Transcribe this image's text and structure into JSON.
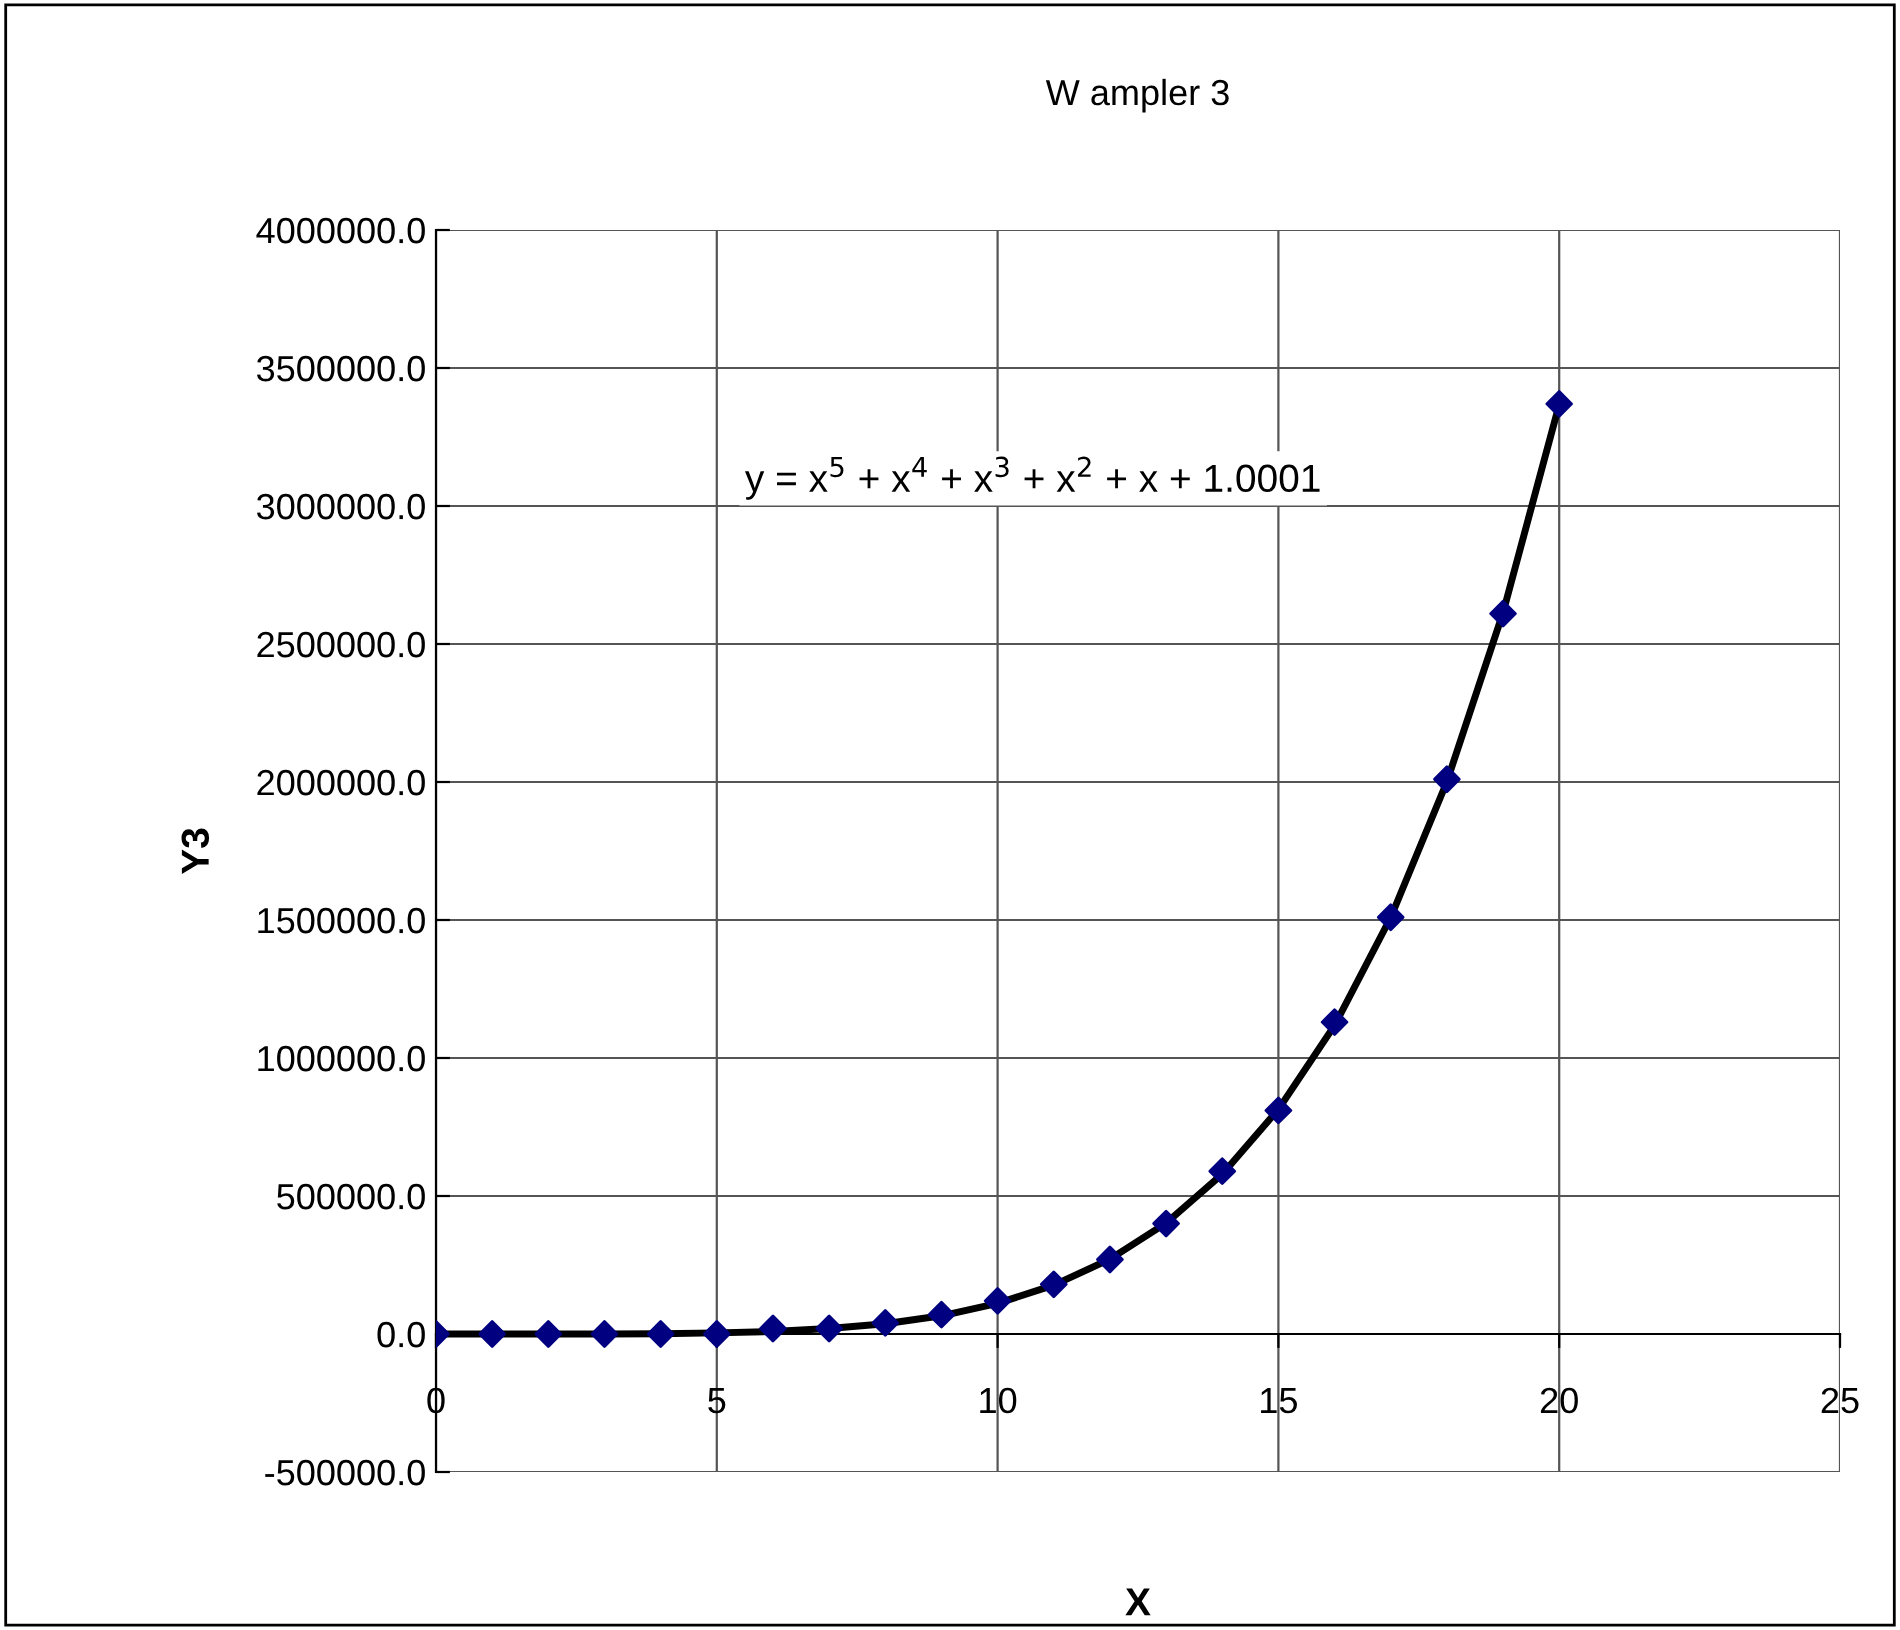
{
  "chart_data": {
    "type": "scatter",
    "title": "W ampler 3",
    "xlabel": "X",
    "ylabel": "Y3",
    "x": [
      0,
      1,
      2,
      3,
      4,
      5,
      6,
      7,
      8,
      9,
      10,
      11,
      12,
      13,
      14,
      15,
      16,
      17,
      18,
      19,
      20
    ],
    "series": [
      {
        "type": "line",
        "color": "#000000",
        "marker": "none",
        "line_style": "solid",
        "x": [
          0,
          1,
          2,
          3,
          4,
          5,
          6,
          7,
          8,
          9,
          10,
          11,
          12,
          13,
          14,
          15,
          16,
          17,
          18,
          19,
          20
        ],
        "values": [
          0,
          0,
          0,
          0,
          1000,
          4000,
          9000,
          20000,
          37000,
          66000,
          111000,
          177000,
          271000,
          402000,
          579000,
          814000,
          1118000,
          1509000,
          2001000,
          2614000,
          3368000
        ]
      },
      {
        "color": "#000080",
        "marker": "diamond",
        "values": [
          0,
          0,
          0,
          0,
          0,
          0,
          20000,
          20000,
          40000,
          70000,
          120000,
          180000,
          270000,
          400000,
          590000,
          810000,
          1130000,
          1510000,
          2010000,
          2610000,
          3370000
        ]
      }
    ],
    "xlim": [
      0,
      25
    ],
    "xticks": [
      0,
      5,
      10,
      15,
      20,
      25
    ],
    "ylim": [
      -500000,
      4000000
    ],
    "yticks": [
      {
        "value": -500000,
        "label": "-500000.0"
      },
      {
        "value": 0,
        "label": "0.0"
      },
      {
        "value": 500000,
        "label": "500000.0"
      },
      {
        "value": 1000000,
        "label": "1000000.0"
      },
      {
        "value": 1500000,
        "label": "1500000.0"
      },
      {
        "value": 2000000,
        "label": "2000000.0"
      },
      {
        "value": 2500000,
        "label": "2500000.0"
      },
      {
        "value": 3000000,
        "label": "3000000.0"
      },
      {
        "value": 3500000,
        "label": "3500000.0"
      },
      {
        "value": 4000000,
        "label": "4000000.0"
      }
    ],
    "grid": true,
    "annotations": [
      "y = x$^{5}$ + x$^{4}$ + x$^{3}$ + x$^{2}$ + x + 1.0001"
    ]
  }
}
